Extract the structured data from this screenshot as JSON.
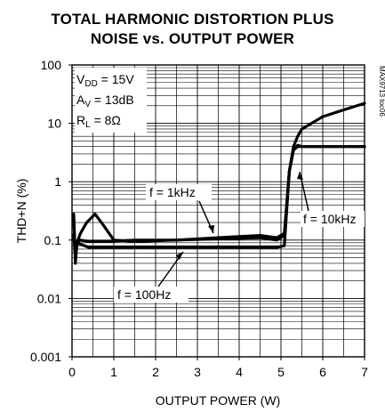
{
  "chart_data": {
    "type": "line",
    "title": "TOTAL HARMONIC DISTORTION PLUS",
    "subtitle": "NOISE vs. OUTPUT POWER",
    "xlabel": "OUTPUT POWER (W)",
    "ylabel": "THD+N (%)",
    "xlim": [
      0,
      7
    ],
    "ylim": [
      0.001,
      100
    ],
    "yscale": "log",
    "grid": true,
    "xticks": [
      "0",
      "1",
      "2",
      "3",
      "4",
      "5",
      "6",
      "7"
    ],
    "yticks": [
      "0.001",
      "0.01",
      "0.1",
      "1",
      "10",
      "100"
    ],
    "conditions": [
      "VDD = 15V",
      "AV = 13dB",
      "RL = 8Ω"
    ],
    "part_code": "MAX9713 toc06",
    "series": [
      {
        "name": "f = 1kHz",
        "x": [
          0.04,
          0.08,
          0.12,
          0.2,
          0.4,
          0.8,
          1.5,
          2.5,
          3.5,
          4.5,
          4.9,
          5.08,
          5.2,
          5.3,
          5.4,
          5.5,
          6.0,
          6.5,
          7.0
        ],
        "y": [
          0.25,
          0.05,
          0.09,
          0.1,
          0.095,
          0.095,
          0.1,
          0.1,
          0.105,
          0.11,
          0.1,
          0.12,
          1.5,
          3.5,
          4.2,
          4.0,
          4.0,
          4.0,
          4.0
        ]
      },
      {
        "name": "f = 10kHz",
        "x": [
          0.04,
          0.08,
          0.12,
          0.2,
          0.35,
          0.55,
          0.75,
          1.0,
          1.5,
          2.5,
          3.5,
          4.5,
          4.9,
          5.08,
          5.2,
          5.3,
          5.4,
          5.5,
          6.0,
          6.5,
          7.0
        ],
        "y": [
          0.12,
          0.05,
          0.09,
          0.13,
          0.2,
          0.28,
          0.18,
          0.1,
          0.095,
          0.1,
          0.11,
          0.12,
          0.11,
          0.13,
          1.5,
          4.0,
          6.0,
          8.0,
          13.0,
          17.0,
          22.0
        ]
      },
      {
        "name": "f = 100Hz",
        "x": [
          0.04,
          0.08,
          0.12,
          0.2,
          0.4,
          0.8,
          1.5,
          2.5,
          3.5,
          4.5,
          4.9,
          5.08,
          5.2,
          5.3,
          5.4,
          5.5,
          6.0,
          6.5,
          7.0
        ],
        "y": [
          0.28,
          0.04,
          0.09,
          0.085,
          0.075,
          0.075,
          0.075,
          0.075,
          0.075,
          0.075,
          0.075,
          0.08,
          1.5,
          3.5,
          4.0,
          4.0,
          4.0,
          4.0,
          4.0
        ]
      }
    ],
    "annotations": [
      "f = 1kHz",
      "f = 10kHz",
      "f = 100Hz"
    ]
  }
}
